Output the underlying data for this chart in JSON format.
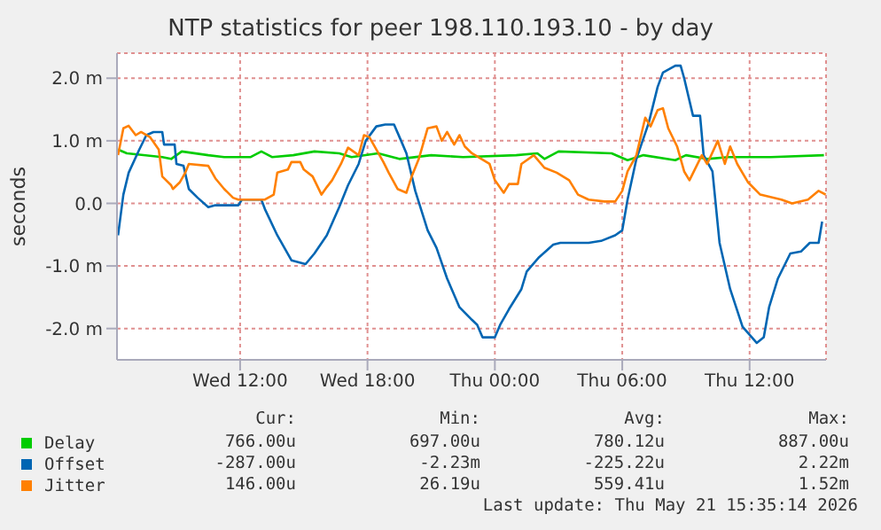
{
  "chart_data": {
    "type": "line",
    "title": "NTP statistics for peer 198.110.193.10 - by day",
    "ylabel": "seconds",
    "xlim": [
      "2026-05-20T06:12",
      "2026-05-21T15:36"
    ],
    "xticks": [
      {
        "value": "2026-05-20T12:00",
        "label": "Wed 12:00"
      },
      {
        "value": "2026-05-20T18:00",
        "label": "Wed 18:00"
      },
      {
        "value": "2026-05-21T00:00",
        "label": "Thu 00:00"
      },
      {
        "value": "2026-05-21T06:00",
        "label": "Thu 06:00"
      },
      {
        "value": "2026-05-21T12:00",
        "label": "Thu 12:00"
      }
    ],
    "ylim": [
      -2.5,
      2.4
    ],
    "yticks": [
      {
        "value": -2,
        "label": "-2.0 m"
      },
      {
        "value": -1,
        "label": "-1.0 m"
      },
      {
        "value": 0,
        "label": "0.0"
      },
      {
        "value": 1,
        "label": "1.0 m"
      },
      {
        "value": 2,
        "label": "2.0 m"
      }
    ],
    "grid": true,
    "legend": "bottom",
    "series": [
      {
        "name": "Delay",
        "color": "#00cc00",
        "x": [
          "2026-05-20T06:15",
          "2026-05-20T06:40",
          "2026-05-20T08:20",
          "2026-05-20T08:45",
          "2026-05-20T09:15",
          "2026-05-20T10:30",
          "2026-05-20T11:15",
          "2026-05-20T12:30",
          "2026-05-20T13:00",
          "2026-05-20T13:30",
          "2026-05-20T14:30",
          "2026-05-20T15:30",
          "2026-05-20T16:40",
          "2026-05-20T17:15",
          "2026-05-20T18:30",
          "2026-05-20T19:30",
          "2026-05-20T21:00",
          "2026-05-20T22:30",
          "2026-05-21T01:00",
          "2026-05-21T02:00",
          "2026-05-21T02:20",
          "2026-05-21T03:00",
          "2026-05-21T05:30",
          "2026-05-21T06:15",
          "2026-05-21T07:00",
          "2026-05-21T08:30",
          "2026-05-21T09:00",
          "2026-05-21T10:00",
          "2026-05-21T11:00",
          "2026-05-21T13:00",
          "2026-05-21T15:30"
        ],
        "values": [
          0.86,
          0.8,
          0.74,
          0.71,
          0.83,
          0.77,
          0.74,
          0.74,
          0.83,
          0.74,
          0.77,
          0.83,
          0.8,
          0.74,
          0.8,
          0.71,
          0.77,
          0.74,
          0.77,
          0.8,
          0.71,
          0.83,
          0.8,
          0.69,
          0.77,
          0.69,
          0.77,
          0.71,
          0.74,
          0.74,
          0.77
        ]
      },
      {
        "name": "Offset",
        "color": "#0066b3",
        "x": [
          "2026-05-20T06:15",
          "2026-05-20T06:30",
          "2026-05-20T06:45",
          "2026-05-20T07:15",
          "2026-05-20T07:35",
          "2026-05-20T07:55",
          "2026-05-20T08:20",
          "2026-05-20T08:25",
          "2026-05-20T08:55",
          "2026-05-20T09:00",
          "2026-05-20T09:20",
          "2026-05-20T09:35",
          "2026-05-20T10:00",
          "2026-05-20T10:30",
          "2026-05-20T10:50",
          "2026-05-20T11:55",
          "2026-05-20T12:05",
          "2026-05-20T13:00",
          "2026-05-20T13:10",
          "2026-05-20T13:45",
          "2026-05-20T14:25",
          "2026-05-20T15:05",
          "2026-05-20T15:30",
          "2026-05-20T16:05",
          "2026-05-20T16:40",
          "2026-05-20T17:05",
          "2026-05-20T17:35",
          "2026-05-20T17:55",
          "2026-05-20T18:25",
          "2026-05-20T18:50",
          "2026-05-20T19:15",
          "2026-05-20T19:35",
          "2026-05-20T19:50",
          "2026-05-20T20:15",
          "2026-05-20T20:50",
          "2026-05-20T21:15",
          "2026-05-20T21:45",
          "2026-05-20T22:20",
          "2026-05-20T22:55",
          "2026-05-20T23:10",
          "2026-05-20T23:25",
          "2026-05-21T00:00",
          "2026-05-21T00:15",
          "2026-05-21T00:40",
          "2026-05-21T01:15",
          "2026-05-21T01:30",
          "2026-05-21T02:05",
          "2026-05-21T02:45",
          "2026-05-21T03:05",
          "2026-05-21T04:25",
          "2026-05-21T05:00",
          "2026-05-21T05:40",
          "2026-05-21T06:00",
          "2026-05-21T06:15",
          "2026-05-21T06:40",
          "2026-05-21T07:15",
          "2026-05-21T07:40",
          "2026-05-21T07:55",
          "2026-05-21T08:30",
          "2026-05-21T08:45",
          "2026-05-21T08:55",
          "2026-05-21T09:20",
          "2026-05-21T09:40",
          "2026-05-21T09:50",
          "2026-05-21T10:15",
          "2026-05-21T10:35",
          "2026-05-21T11:05",
          "2026-05-21T11:40",
          "2026-05-21T12:20",
          "2026-05-21T12:40",
          "2026-05-21T12:55",
          "2026-05-21T13:20",
          "2026-05-21T13:55",
          "2026-05-21T14:25",
          "2026-05-21T14:50",
          "2026-05-21T15:15",
          "2026-05-21T15:25"
        ],
        "values": [
          -0.51,
          0.14,
          0.49,
          0.86,
          1.09,
          1.14,
          1.14,
          0.94,
          0.94,
          0.63,
          0.6,
          0.23,
          0.09,
          -0.06,
          -0.03,
          -0.03,
          0.06,
          0.06,
          -0.09,
          -0.51,
          -0.91,
          -0.97,
          -0.8,
          -0.51,
          -0.06,
          0.29,
          0.63,
          1.0,
          1.23,
          1.26,
          1.26,
          1.0,
          0.8,
          0.2,
          -0.43,
          -0.71,
          -1.2,
          -1.66,
          -1.86,
          -1.94,
          -2.14,
          -2.14,
          -1.94,
          -1.69,
          -1.37,
          -1.09,
          -0.86,
          -0.66,
          -0.63,
          -0.63,
          -0.6,
          -0.51,
          -0.43,
          0.06,
          0.71,
          1.29,
          1.86,
          2.09,
          2.2,
          2.2,
          2.0,
          1.4,
          1.4,
          0.77,
          0.51,
          -0.63,
          -1.37,
          -1.97,
          -2.23,
          -2.14,
          -1.66,
          -1.2,
          -0.8,
          -0.77,
          -0.63,
          -0.63,
          -0.29
        ]
      },
      {
        "name": "Jitter",
        "color": "#ff8000",
        "x": [
          "2026-05-20T06:15",
          "2026-05-20T06:30",
          "2026-05-20T06:45",
          "2026-05-20T07:05",
          "2026-05-20T07:20",
          "2026-05-20T07:45",
          "2026-05-20T08:10",
          "2026-05-20T08:20",
          "2026-05-20T08:45",
          "2026-05-20T08:50",
          "2026-05-20T09:10",
          "2026-05-20T09:25",
          "2026-05-20T09:35",
          "2026-05-20T10:30",
          "2026-05-20T10:50",
          "2026-05-20T11:15",
          "2026-05-20T11:40",
          "2026-05-20T11:55",
          "2026-05-20T13:10",
          "2026-05-20T13:35",
          "2026-05-20T13:45",
          "2026-05-20T14:15",
          "2026-05-20T14:25",
          "2026-05-20T14:50",
          "2026-05-20T15:00",
          "2026-05-20T15:25",
          "2026-05-20T15:50",
          "2026-05-20T16:05",
          "2026-05-20T16:20",
          "2026-05-20T16:45",
          "2026-05-20T17:05",
          "2026-05-20T17:35",
          "2026-05-20T17:50",
          "2026-05-20T18:05",
          "2026-05-20T18:20",
          "2026-05-20T18:45",
          "2026-05-20T19:00",
          "2026-05-20T19:25",
          "2026-05-20T19:50",
          "2026-05-20T20:05",
          "2026-05-20T20:25",
          "2026-05-20T20:50",
          "2026-05-20T21:15",
          "2026-05-20T21:30",
          "2026-05-20T21:45",
          "2026-05-20T22:05",
          "2026-05-20T22:20",
          "2026-05-20T22:35",
          "2026-05-20T22:55",
          "2026-05-20T23:45",
          "2026-05-21T00:00",
          "2026-05-21T00:25",
          "2026-05-21T00:40",
          "2026-05-21T01:05",
          "2026-05-21T01:15",
          "2026-05-21T01:50",
          "2026-05-21T02:20",
          "2026-05-21T02:55",
          "2026-05-21T03:30",
          "2026-05-21T03:55",
          "2026-05-21T04:25",
          "2026-05-21T05:10",
          "2026-05-21T05:40",
          "2026-05-21T06:00",
          "2026-05-21T06:15",
          "2026-05-21T06:40",
          "2026-05-21T07:05",
          "2026-05-21T07:20",
          "2026-05-21T07:40",
          "2026-05-21T07:55",
          "2026-05-21T08:10",
          "2026-05-21T08:35",
          "2026-05-21T08:55",
          "2026-05-21T09:10",
          "2026-05-21T09:45",
          "2026-05-21T10:00",
          "2026-05-21T10:30",
          "2026-05-21T10:50",
          "2026-05-21T11:05",
          "2026-05-21T11:25",
          "2026-05-21T11:55",
          "2026-05-21T12:30",
          "2026-05-21T13:30",
          "2026-05-21T14:00",
          "2026-05-21T14:45",
          "2026-05-21T15:15",
          "2026-05-21T15:35"
        ],
        "values": [
          0.77,
          1.2,
          1.24,
          1.09,
          1.14,
          1.06,
          0.86,
          0.43,
          0.29,
          0.23,
          0.34,
          0.49,
          0.63,
          0.6,
          0.4,
          0.23,
          0.09,
          0.06,
          0.06,
          0.14,
          0.49,
          0.54,
          0.66,
          0.66,
          0.54,
          0.43,
          0.14,
          0.26,
          0.37,
          0.63,
          0.89,
          0.77,
          1.09,
          1.06,
          0.91,
          0.66,
          0.49,
          0.23,
          0.17,
          0.43,
          0.71,
          1.2,
          1.23,
          1.0,
          1.14,
          0.94,
          1.09,
          0.91,
          0.8,
          0.63,
          0.37,
          0.17,
          0.31,
          0.31,
          0.63,
          0.77,
          0.57,
          0.49,
          0.37,
          0.14,
          0.06,
          0.03,
          0.03,
          0.2,
          0.51,
          0.77,
          1.37,
          1.23,
          1.49,
          1.52,
          1.2,
          0.91,
          0.51,
          0.37,
          0.77,
          0.63,
          1.0,
          0.63,
          0.91,
          0.63,
          0.34,
          0.14,
          0.06,
          0.0,
          0.06,
          0.2,
          0.14
        ]
      }
    ],
    "annotations": [
      "Cur:",
      "Min:",
      "Avg:",
      "Max:",
      "766.00u",
      "697.00u",
      "780.12u",
      "887.00u",
      "-287.00u",
      "-2.23m",
      "-225.22u",
      "2.22m",
      "146.00u",
      "26.19u",
      "559.41u",
      "1.52m",
      "Last update: Thu May 21 15:35:14 2026"
    ]
  }
}
